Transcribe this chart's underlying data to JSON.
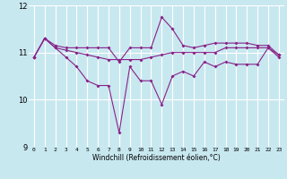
{
  "x": [
    0,
    1,
    2,
    3,
    4,
    5,
    6,
    7,
    8,
    9,
    10,
    11,
    12,
    13,
    14,
    15,
    16,
    17,
    18,
    19,
    20,
    21,
    22,
    23
  ],
  "line1": [
    10.9,
    11.3,
    11.1,
    10.9,
    10.7,
    10.4,
    10.3,
    10.3,
    9.3,
    10.7,
    10.4,
    10.4,
    9.9,
    10.5,
    10.6,
    10.5,
    10.8,
    10.7,
    10.8,
    10.75,
    10.75,
    10.75,
    11.1,
    10.9
  ],
  "line2": [
    10.9,
    11.3,
    11.15,
    11.1,
    11.1,
    11.1,
    11.1,
    11.1,
    10.8,
    11.1,
    11.1,
    11.1,
    11.75,
    11.5,
    11.15,
    11.1,
    11.15,
    11.2,
    11.2,
    11.2,
    11.2,
    11.15,
    11.15,
    10.95
  ],
  "line3": [
    10.9,
    11.3,
    11.1,
    11.05,
    11.0,
    10.95,
    10.9,
    10.85,
    10.85,
    10.85,
    10.85,
    10.9,
    10.95,
    11.0,
    11.0,
    11.0,
    11.0,
    11.0,
    11.1,
    11.1,
    11.1,
    11.1,
    11.1,
    10.95
  ],
  "ylim": [
    9.0,
    12.0
  ],
  "yticks": [
    9,
    10,
    11,
    12
  ],
  "xlim": [
    -0.5,
    23.5
  ],
  "xticks": [
    0,
    1,
    2,
    3,
    4,
    5,
    6,
    7,
    8,
    9,
    10,
    11,
    12,
    13,
    14,
    15,
    16,
    17,
    18,
    19,
    20,
    21,
    22,
    23
  ],
  "xlabel": "Windchill (Refroidissement éolien,°C)",
  "line_color": "#882288",
  "bg_color": "#c8e8f0",
  "grid_color": "#ffffff",
  "marker": "D",
  "markersize": 2.0,
  "linewidth": 0.8,
  "xlabel_fontsize": 5.5,
  "tick_fontsize": 4.5,
  "ytick_fontsize": 6.0
}
